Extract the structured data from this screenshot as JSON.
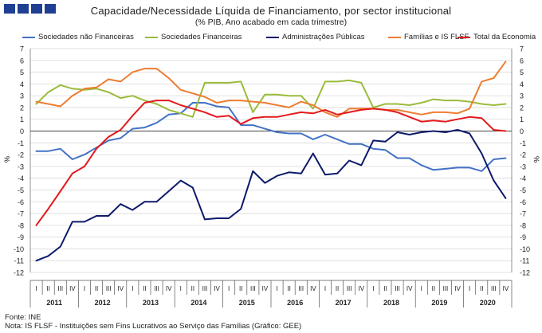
{
  "header": {
    "title": "Capacidade/Necessidade Líquida de Financiamento, por sector institucional",
    "subtitle": "(% PIB, Ano acabado em cada trimestre)"
  },
  "footer": {
    "source": "Fonte: INE",
    "note": "Nota: IS FLSF - Instituições sem Fins Lucrativos ao Serviço das Famílias (Gráfico: GEE)"
  },
  "colors": {
    "logo": "#1f3f93",
    "grid": "#d9d9d9"
  },
  "chart_data": {
    "type": "line",
    "title": "Capacidade/Necessidade Líquida de Financiamento, por sector institucional",
    "subtitle": "(% PIB, Ano acabado em cada trimestre)",
    "ylabel_left": "%",
    "ylabel_right": "%",
    "ylim": [
      -12,
      7
    ],
    "yticks": [
      7,
      6,
      5,
      4,
      3,
      2,
      1,
      0,
      -1,
      -2,
      -3,
      -4,
      -5,
      -6,
      -7,
      -8,
      -9,
      -10,
      -11,
      -12
    ],
    "quarter_labels": [
      "I",
      "II",
      "III",
      "IV"
    ],
    "years": [
      "2011",
      "2012",
      "2013",
      "2014",
      "2015",
      "2016",
      "2017",
      "2018",
      "2019",
      "2020"
    ],
    "grid": "horizontal",
    "legend_position": "top",
    "x": [
      "2011 I",
      "2011 II",
      "2011 III",
      "2011 IV",
      "2012 I",
      "2012 II",
      "2012 III",
      "2012 IV",
      "2013 I",
      "2013 II",
      "2013 III",
      "2013 IV",
      "2014 I",
      "2014 II",
      "2014 III",
      "2014 IV",
      "2015 I",
      "2015 II",
      "2015 III",
      "2015 IV",
      "2016 I",
      "2016 II",
      "2016 III",
      "2016 IV",
      "2017 I",
      "2017 II",
      "2017 III",
      "2017 IV",
      "2018 I",
      "2018 II",
      "2018 III",
      "2018 IV",
      "2019 I",
      "2019 II",
      "2019 III",
      "2019 IV",
      "2020 I",
      "2020 II",
      "2020 III",
      "2020 IV"
    ],
    "series": [
      {
        "name": "Sociedades não Financeiras",
        "color": "#4472c4",
        "values": [
          -1.7,
          -1.7,
          -1.5,
          -2.4,
          -2.0,
          -1.4,
          -0.8,
          -0.6,
          0.2,
          0.3,
          0.7,
          1.4,
          1.5,
          2.4,
          2.4,
          2.1,
          2.0,
          0.5,
          0.5,
          0.2,
          -0.1,
          -0.2,
          -0.2,
          -0.7,
          -0.3,
          -0.7,
          -1.1,
          -1.1,
          -1.5,
          -1.6,
          -2.3,
          -2.3,
          -2.9,
          -3.3,
          -3.2,
          -3.1,
          -3.1,
          -3.4,
          -2.4,
          -2.3
        ]
      },
      {
        "name": "Sociedades Financeiras",
        "color": "#9bbb3c",
        "values": [
          2.3,
          3.3,
          3.9,
          3.6,
          3.5,
          3.6,
          3.3,
          2.8,
          3.0,
          2.6,
          2.3,
          1.8,
          1.5,
          1.2,
          4.1,
          4.1,
          4.1,
          4.2,
          1.6,
          3.1,
          3.1,
          3.0,
          3.0,
          1.9,
          4.2,
          4.2,
          4.3,
          4.1,
          2.0,
          2.3,
          2.3,
          2.2,
          2.4,
          2.7,
          2.6,
          2.6,
          2.5,
          2.3,
          2.2,
          2.3
        ]
      },
      {
        "name": "Administrações Públicas",
        "color": "#0d1a6b",
        "values": [
          -11.0,
          -10.6,
          -9.8,
          -7.7,
          -7.7,
          -7.2,
          -7.2,
          -6.2,
          -6.7,
          -6.0,
          -6.0,
          -5.1,
          -4.2,
          -4.8,
          -7.5,
          -7.4,
          -7.4,
          -6.6,
          -3.4,
          -4.4,
          -3.8,
          -3.5,
          -3.6,
          -1.9,
          -3.7,
          -3.6,
          -2.5,
          -2.9,
          -0.8,
          -0.9,
          -0.1,
          -0.3,
          -0.1,
          0.0,
          -0.1,
          0.1,
          -0.2,
          -1.9,
          -4.2,
          -5.7
        ]
      },
      {
        "name": "Famílias e IS FLSF",
        "color": "#ed7d31",
        "values": [
          2.5,
          2.3,
          2.1,
          3.0,
          3.6,
          3.7,
          4.4,
          4.2,
          5.0,
          5.3,
          5.3,
          4.5,
          3.5,
          3.2,
          2.9,
          2.4,
          2.6,
          2.6,
          2.5,
          2.4,
          2.2,
          2.0,
          2.5,
          2.2,
          1.6,
          1.2,
          1.9,
          1.9,
          1.9,
          1.8,
          1.8,
          1.6,
          1.4,
          1.6,
          1.6,
          1.5,
          1.9,
          4.2,
          4.5,
          5.9
        ]
      },
      {
        "name": "Total da Economia",
        "color": "#e31a1c",
        "values": [
          -8.0,
          -6.6,
          -5.1,
          -3.6,
          -3.0,
          -1.5,
          -0.5,
          0.1,
          1.3,
          2.4,
          2.6,
          2.6,
          2.2,
          1.9,
          1.6,
          1.2,
          1.3,
          0.6,
          1.1,
          1.2,
          1.2,
          1.4,
          1.6,
          1.5,
          1.8,
          1.4,
          1.6,
          1.8,
          1.9,
          1.8,
          1.6,
          1.2,
          0.8,
          0.9,
          0.8,
          1.0,
          1.2,
          1.1,
          0.1,
          0.0
        ]
      }
    ]
  }
}
